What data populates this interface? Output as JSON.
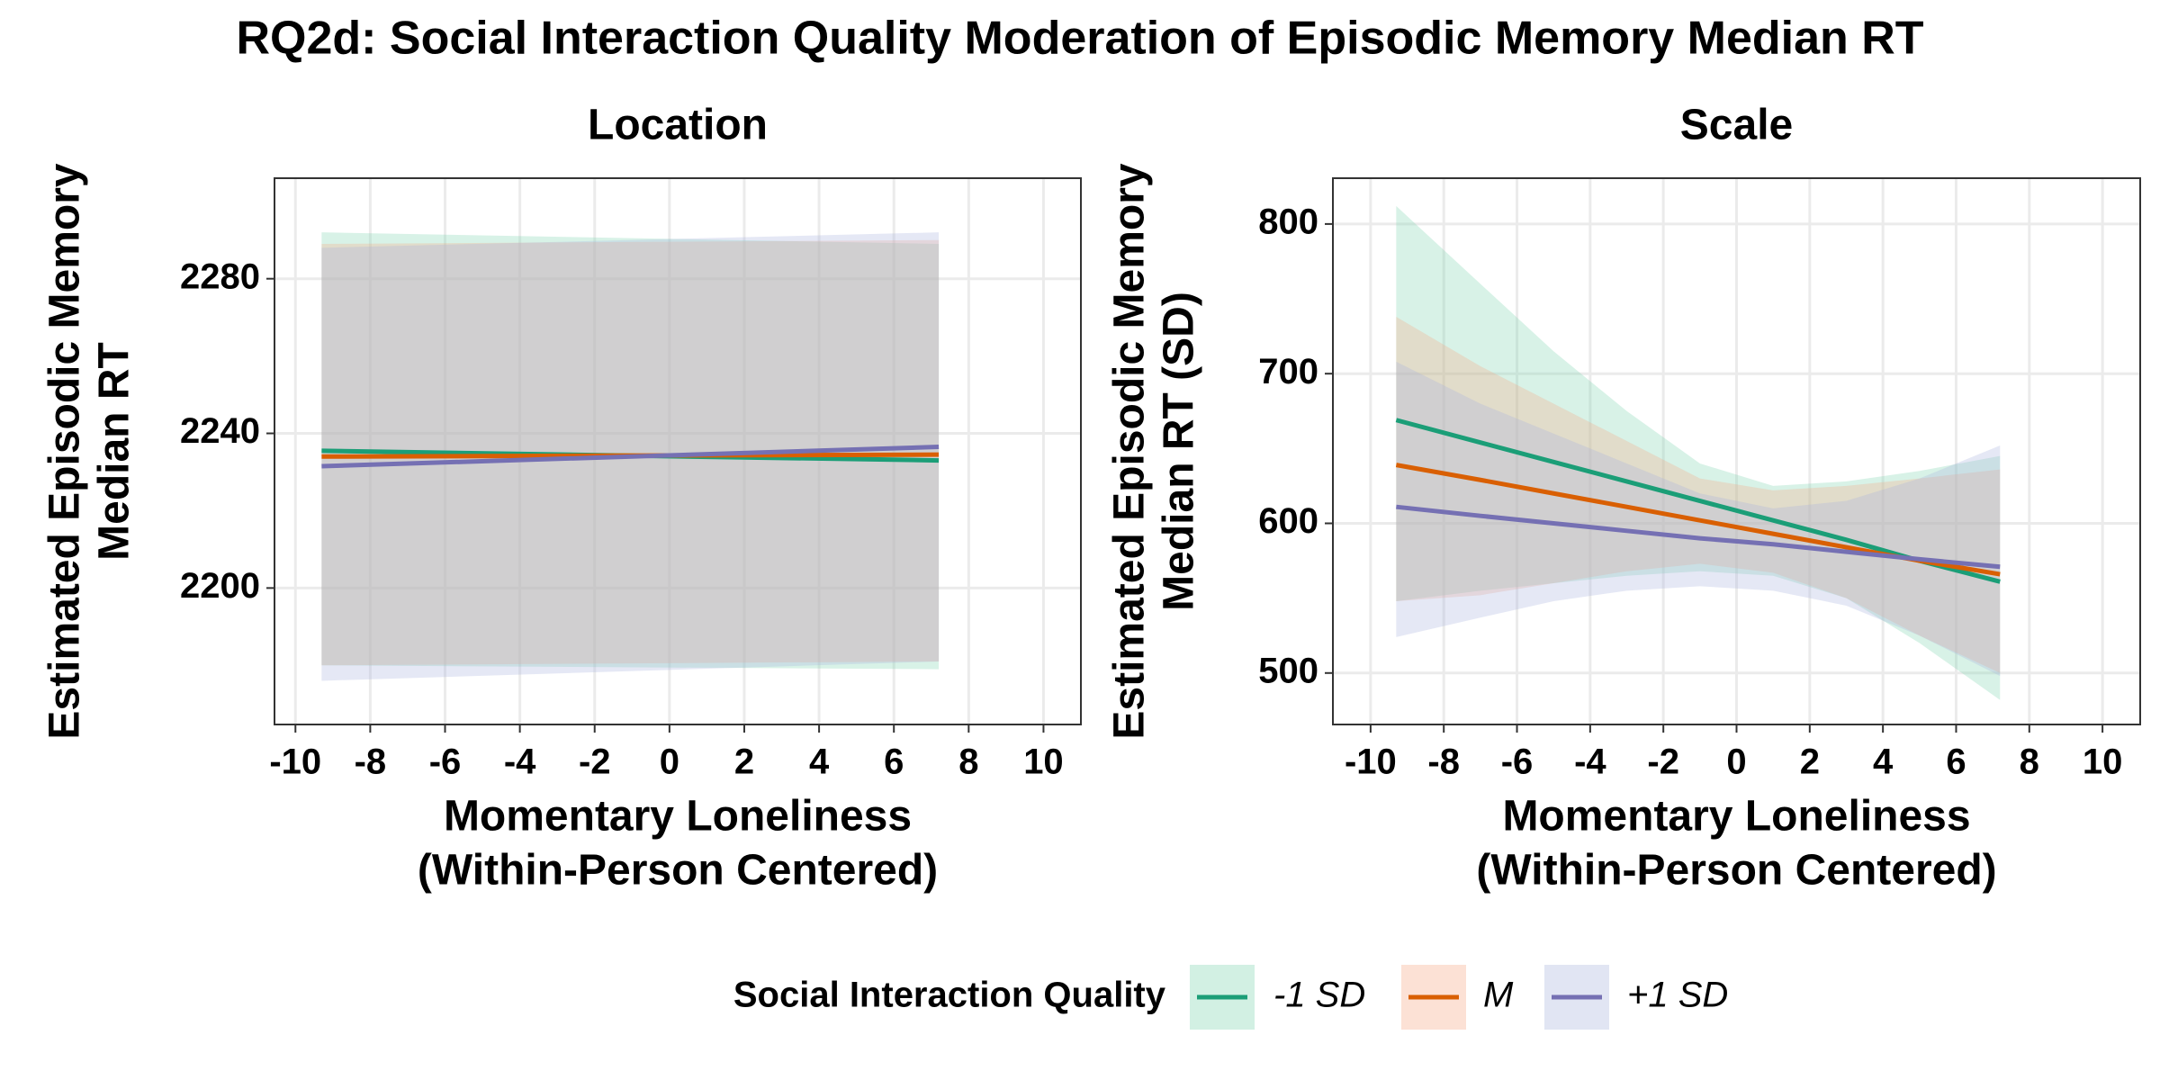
{
  "title": "RQ2d: Social Interaction Quality Moderation of Episodic Memory Median RT",
  "legend_title": "Social Interaction Quality",
  "chart_data": [
    {
      "type": "line",
      "title": "Location",
      "xlabel": [
        "Momentary Loneliness",
        "(Within-Person Centered)"
      ],
      "ylabel": [
        "Estimated Episodic Memory",
        "Median RT"
      ],
      "x": [
        -9.3,
        7.2
      ],
      "series": [
        {
          "name": "-1 SD",
          "color": "#1b9e77",
          "band_color": "#7fd3b0",
          "values": [
            2235.5,
            2233
          ],
          "lower": [
            2180,
            2179
          ],
          "upper": [
            2292,
            2289
          ]
        },
        {
          "name": "M",
          "color": "#d95f02",
          "band_color": "#f5a888",
          "values": [
            2234,
            2234.5
          ],
          "lower": [
            2180,
            2181
          ],
          "upper": [
            2289,
            2290
          ]
        },
        {
          "name": "+1 SD",
          "color": "#7570b3",
          "band_color": "#a9b4dd",
          "values": [
            2231.5,
            2236.5
          ],
          "lower": [
            2176,
            2181
          ],
          "upper": [
            2288,
            2292
          ]
        }
      ],
      "xlim": [
        -10.56,
        11.0
      ],
      "xticks": [
        -10,
        -8,
        -6,
        -4,
        -2,
        0,
        2,
        4,
        6,
        8,
        10
      ],
      "ylim": [
        2164.7,
        2306
      ],
      "yticks": [
        2200,
        2240,
        2280
      ],
      "grid": true
    },
    {
      "type": "line",
      "title": "Scale",
      "xlabel": [
        "Momentary Loneliness",
        "(Within-Person Centered)"
      ],
      "ylabel": [
        "Estimated Episodic Memory",
        "Median RT (SD)"
      ],
      "x": [
        -9.3,
        -7,
        -5,
        -3,
        -1,
        1,
        3,
        5,
        7.2
      ],
      "series": [
        {
          "name": "-1 SD",
          "color": "#1b9e77",
          "band_color": "#7fd3b0",
          "values": [
            669,
            654,
            641,
            628,
            615,
            602,
            589,
            575,
            561
          ],
          "lower": [
            548,
            555,
            560,
            565,
            568,
            565,
            550,
            520,
            482
          ],
          "upper": [
            812,
            760,
            715,
            675,
            640,
            625,
            628,
            635,
            645
          ]
        },
        {
          "name": "M",
          "color": "#d95f02",
          "band_color": "#f5a888",
          "values": [
            639,
            629,
            620,
            611,
            602,
            593,
            584,
            575,
            566
          ],
          "lower": [
            548,
            552,
            560,
            568,
            573,
            567,
            550,
            525,
            500
          ],
          "upper": [
            738,
            705,
            680,
            655,
            630,
            622,
            625,
            630,
            636
          ]
        },
        {
          "name": "+1 SD",
          "color": "#7570b3",
          "band_color": "#a9b4dd",
          "values": [
            611,
            605,
            600,
            595,
            590,
            586,
            581,
            576,
            571
          ],
          "lower": [
            524,
            537,
            548,
            555,
            558,
            555,
            545,
            525,
            498
          ],
          "upper": [
            708,
            680,
            660,
            640,
            620,
            610,
            615,
            630,
            652
          ]
        }
      ],
      "xlim": [
        -11.03,
        11.03
      ],
      "xticks": [
        -10,
        -8,
        -6,
        -4,
        -2,
        0,
        2,
        4,
        6,
        8,
        10
      ],
      "ylim": [
        465.6,
        830.6
      ],
      "yticks": [
        500,
        600,
        700,
        800
      ],
      "grid": true
    }
  ]
}
